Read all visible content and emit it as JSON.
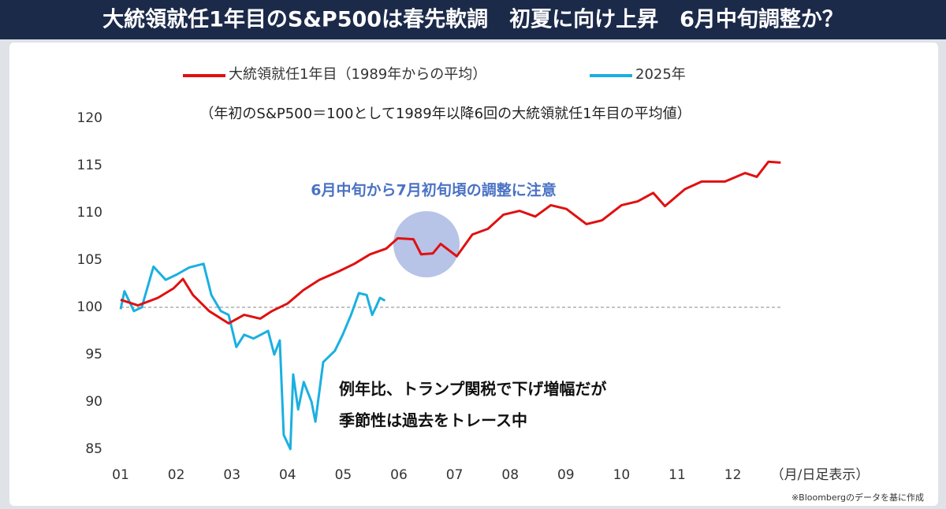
{
  "chart_data": {
    "type": "line",
    "title": "大統領就任1年目のS&P500は春先軟調　初夏に向け上昇　6月中旬調整か？",
    "subtitle": "（年初のS&P500＝100として1989年以降6回の大統領就任1年目の平均値）",
    "x_axis_label": "（月/日足表示）",
    "annotations": [
      "6月中旬から7月初旬頃の調整に注意",
      "例年比、トランプ関税で下げ増幅だが",
      "季節性は過去をトレース中"
    ],
    "source": "※Bloombergのデータを基に作成",
    "reference_line": 100,
    "xlim": [
      1,
      13
    ],
    "ylim": [
      85,
      120
    ],
    "xticks": [
      {
        "value": 1,
        "label": "01"
      },
      {
        "value": 2,
        "label": "02"
      },
      {
        "value": 3,
        "label": "03"
      },
      {
        "value": 4,
        "label": "04"
      },
      {
        "value": 5,
        "label": "05"
      },
      {
        "value": 6,
        "label": "06"
      },
      {
        "value": 7,
        "label": "07"
      },
      {
        "value": 8,
        "label": "08"
      },
      {
        "value": 9,
        "label": "09"
      },
      {
        "value": 10,
        "label": "10"
      },
      {
        "value": 11,
        "label": "11"
      },
      {
        "value": 12,
        "label": "12"
      }
    ],
    "yticks": [
      85,
      90,
      95,
      100,
      105,
      110,
      115,
      120
    ],
    "series": [
      {
        "name": "大統領就任1年目（1989年からの平均）",
        "color": "#e01010",
        "x": [
          1.0,
          1.31,
          1.67,
          1.95,
          2.12,
          2.3,
          2.59,
          2.94,
          3.22,
          3.51,
          3.72,
          4.0,
          4.28,
          4.57,
          4.92,
          5.2,
          5.48,
          5.77,
          5.98,
          6.26,
          6.4,
          6.61,
          6.75,
          7.04,
          7.32,
          7.6,
          7.88,
          8.17,
          8.45,
          8.73,
          9.01,
          9.37,
          9.65,
          10.0,
          10.29,
          10.57,
          10.78,
          11.14,
          11.44,
          11.86,
          12.22,
          12.43,
          12.64,
          12.86
        ],
        "values": [
          100.8,
          100.2,
          101,
          102,
          103,
          101.3,
          99.6,
          98.3,
          99.2,
          98.8,
          99.6,
          100.4,
          101.8,
          102.9,
          103.8,
          104.6,
          105.6,
          106.2,
          107.3,
          107.2,
          105.6,
          105.7,
          106.7,
          105.4,
          107.7,
          108.3,
          109.8,
          110.2,
          109.6,
          110.8,
          110.4,
          108.8,
          109.2,
          110.8,
          111.2,
          112.1,
          110.7,
          112.5,
          113.3,
          113.3,
          114.2,
          113.8,
          115.4,
          115.3
        ]
      },
      {
        "name": "2025年",
        "color": "#1ab0e0",
        "x": [
          1.0,
          1.07,
          1.24,
          1.38,
          1.59,
          1.81,
          2.02,
          2.23,
          2.49,
          2.63,
          2.8,
          2.94,
          3.08,
          3.22,
          3.39,
          3.65,
          3.76,
          3.86,
          3.93,
          4.05,
          4.1,
          4.19,
          4.29,
          4.43,
          4.5,
          4.64,
          4.85,
          4.99,
          5.14,
          5.28,
          5.42,
          5.52,
          5.6,
          5.66,
          5.75
        ],
        "values": [
          99.8,
          101.7,
          99.6,
          100,
          104.3,
          102.9,
          103.5,
          104.2,
          104.6,
          101.3,
          99.6,
          99.2,
          95.8,
          97.1,
          96.7,
          97.5,
          95,
          96.5,
          86.5,
          85,
          92.9,
          89.2,
          92.1,
          90,
          87.9,
          94.2,
          95.4,
          97.1,
          99.2,
          101.5,
          101.3,
          99.2,
          100.2,
          101,
          100.7
        ]
      }
    ]
  }
}
